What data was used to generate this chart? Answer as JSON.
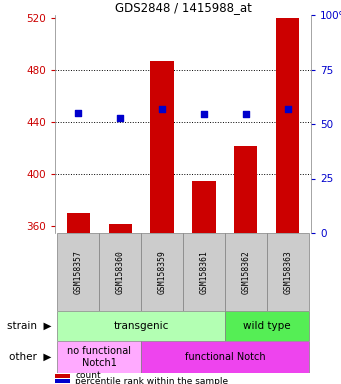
{
  "title": "GDS2848 / 1415988_at",
  "samples": [
    "GSM158357",
    "GSM158360",
    "GSM158359",
    "GSM158361",
    "GSM158362",
    "GSM158363"
  ],
  "counts": [
    370,
    362,
    487,
    395,
    422,
    520
  ],
  "percentile_values": [
    447,
    443,
    450,
    446,
    446,
    450
  ],
  "y_min": 355,
  "y_max": 522,
  "y_ticks": [
    360,
    400,
    440,
    480,
    520
  ],
  "right_y_ticks": [
    0,
    25,
    50,
    75,
    100
  ],
  "bar_color": "#cc0000",
  "dot_color": "#0000cc",
  "tick_label_color_left": "#cc0000",
  "tick_label_color_right": "#0000cc",
  "sample_box_color": "#cccccc",
  "strain_groups": [
    {
      "label": "transgenic",
      "start": 0,
      "end": 3,
      "color": "#b3ffb3"
    },
    {
      "label": "wild type",
      "start": 4,
      "end": 5,
      "color": "#55ee55"
    }
  ],
  "other_groups": [
    {
      "label": "no functional\nNotch1",
      "start": 0,
      "end": 1,
      "color": "#ffaaff"
    },
    {
      "label": "functional Notch",
      "start": 2,
      "end": 5,
      "color": "#ee44ee"
    }
  ],
  "legend_items": [
    {
      "color": "#cc0000",
      "label": "count"
    },
    {
      "color": "#0000cc",
      "label": "percentile rank within the sample"
    }
  ]
}
